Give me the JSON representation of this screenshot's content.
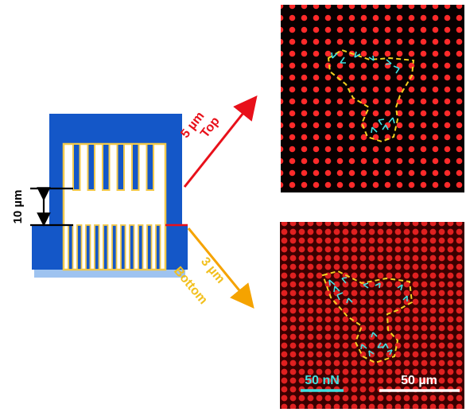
{
  "schematic": {
    "gap_label": "10 µm",
    "top": {
      "size_label": "5 µm",
      "label": "Top"
    },
    "bottom": {
      "size_label": "3 µm",
      "label": "Bottom"
    }
  },
  "micrographs": {
    "top_panel": {
      "dots": "red micropost array",
      "outline": "yellow dashed cell outline",
      "vectors": "cyan force arrows"
    },
    "bottom_panel": {
      "force_scale_label": "50 nN",
      "length_scale_label": "50 µm"
    }
  },
  "colors": {
    "post_blue": "#1457c8",
    "post_outline": "#f2c94c",
    "top_arrow": "#e8101a",
    "bottom_arrow": "#f5a300",
    "bottom_label": "#f2c01e",
    "cyan": "#3fe0e0"
  }
}
